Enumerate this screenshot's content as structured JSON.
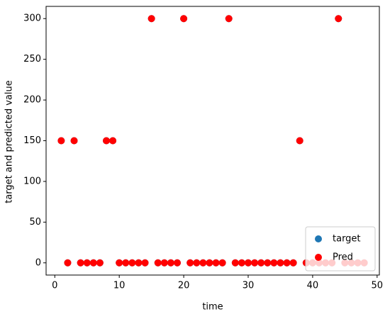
{
  "chart_data": {
    "type": "scatter",
    "x_label": "time",
    "y_label": "target and predicted value",
    "x": [
      1,
      2,
      3,
      4,
      5,
      6,
      7,
      8,
      9,
      10,
      11,
      12,
      13,
      14,
      15,
      16,
      17,
      18,
      19,
      20,
      21,
      22,
      23,
      24,
      25,
      26,
      27,
      28,
      29,
      30,
      31,
      32,
      33,
      34,
      35,
      36,
      37,
      38,
      39,
      40,
      41,
      42,
      43,
      44,
      45,
      46,
      47,
      48
    ],
    "series": [
      {
        "name": "target",
        "color": "#1f77b4",
        "values": [
          150,
          0,
          150,
          0,
          0,
          0,
          0,
          150,
          150,
          0,
          0,
          0,
          0,
          0,
          300,
          0,
          0,
          0,
          0,
          300,
          0,
          0,
          0,
          0,
          0,
          0,
          300,
          0,
          0,
          0,
          0,
          0,
          0,
          0,
          0,
          0,
          0,
          150,
          0,
          0,
          0,
          0,
          0,
          300,
          0,
          0,
          0,
          0
        ]
      },
      {
        "name": "Pred",
        "color": "#ff0000",
        "values": [
          150,
          0,
          150,
          0,
          0,
          0,
          0,
          150,
          150,
          0,
          0,
          0,
          0,
          0,
          300,
          0,
          0,
          0,
          0,
          300,
          0,
          0,
          0,
          0,
          0,
          0,
          300,
          0,
          0,
          0,
          0,
          0,
          0,
          0,
          0,
          0,
          0,
          150,
          0,
          0,
          0,
          0,
          0,
          300,
          0,
          0,
          0,
          0
        ]
      }
    ],
    "xlim": [
      -1.35,
      50.35
    ],
    "ylim": [
      -15,
      315
    ],
    "xticks": [
      0,
      10,
      20,
      30,
      40,
      50
    ],
    "yticks": [
      0,
      50,
      100,
      150,
      200,
      250,
      300
    ],
    "legend": "lower right"
  }
}
